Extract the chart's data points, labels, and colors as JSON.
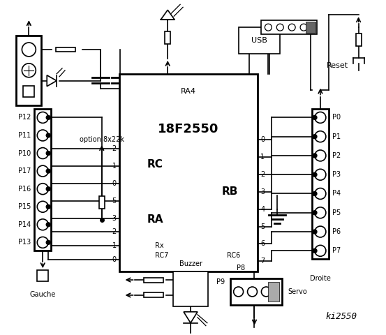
{
  "bg_color": "#f2f2f2",
  "title": "ki2550",
  "chip_label": "18F2550",
  "chip_sub": "RA4",
  "left_labels": [
    "P12",
    "P11",
    "P10",
    "P17",
    "P16",
    "P15",
    "P14",
    "P13"
  ],
  "right_labels": [
    "P0",
    "P1",
    "P2",
    "P3",
    "P4",
    "P5",
    "P6",
    "P7"
  ],
  "rc_pins": [
    "2",
    "1",
    "0"
  ],
  "ra_pins": [
    "5",
    "3",
    "2",
    "1",
    "0"
  ],
  "rb_pins": [
    "0",
    "1",
    "2",
    "3",
    "4",
    "5",
    "6",
    "7"
  ],
  "option_text": "option 8x22k",
  "gauche_text": "Gauche",
  "droite_text": "Droite",
  "servo_text": "Servo",
  "buzzer_text": "Buzzer",
  "p8_text": "P8",
  "p9_text": "P9",
  "reset_text": "Reset",
  "usb_text": "USB",
  "rc_text": "RC",
  "ra_text": "RA",
  "rb_text": "RB",
  "rx_text": "Rx",
  "rc7_text": "RC7",
  "rc6_text": "RC6"
}
